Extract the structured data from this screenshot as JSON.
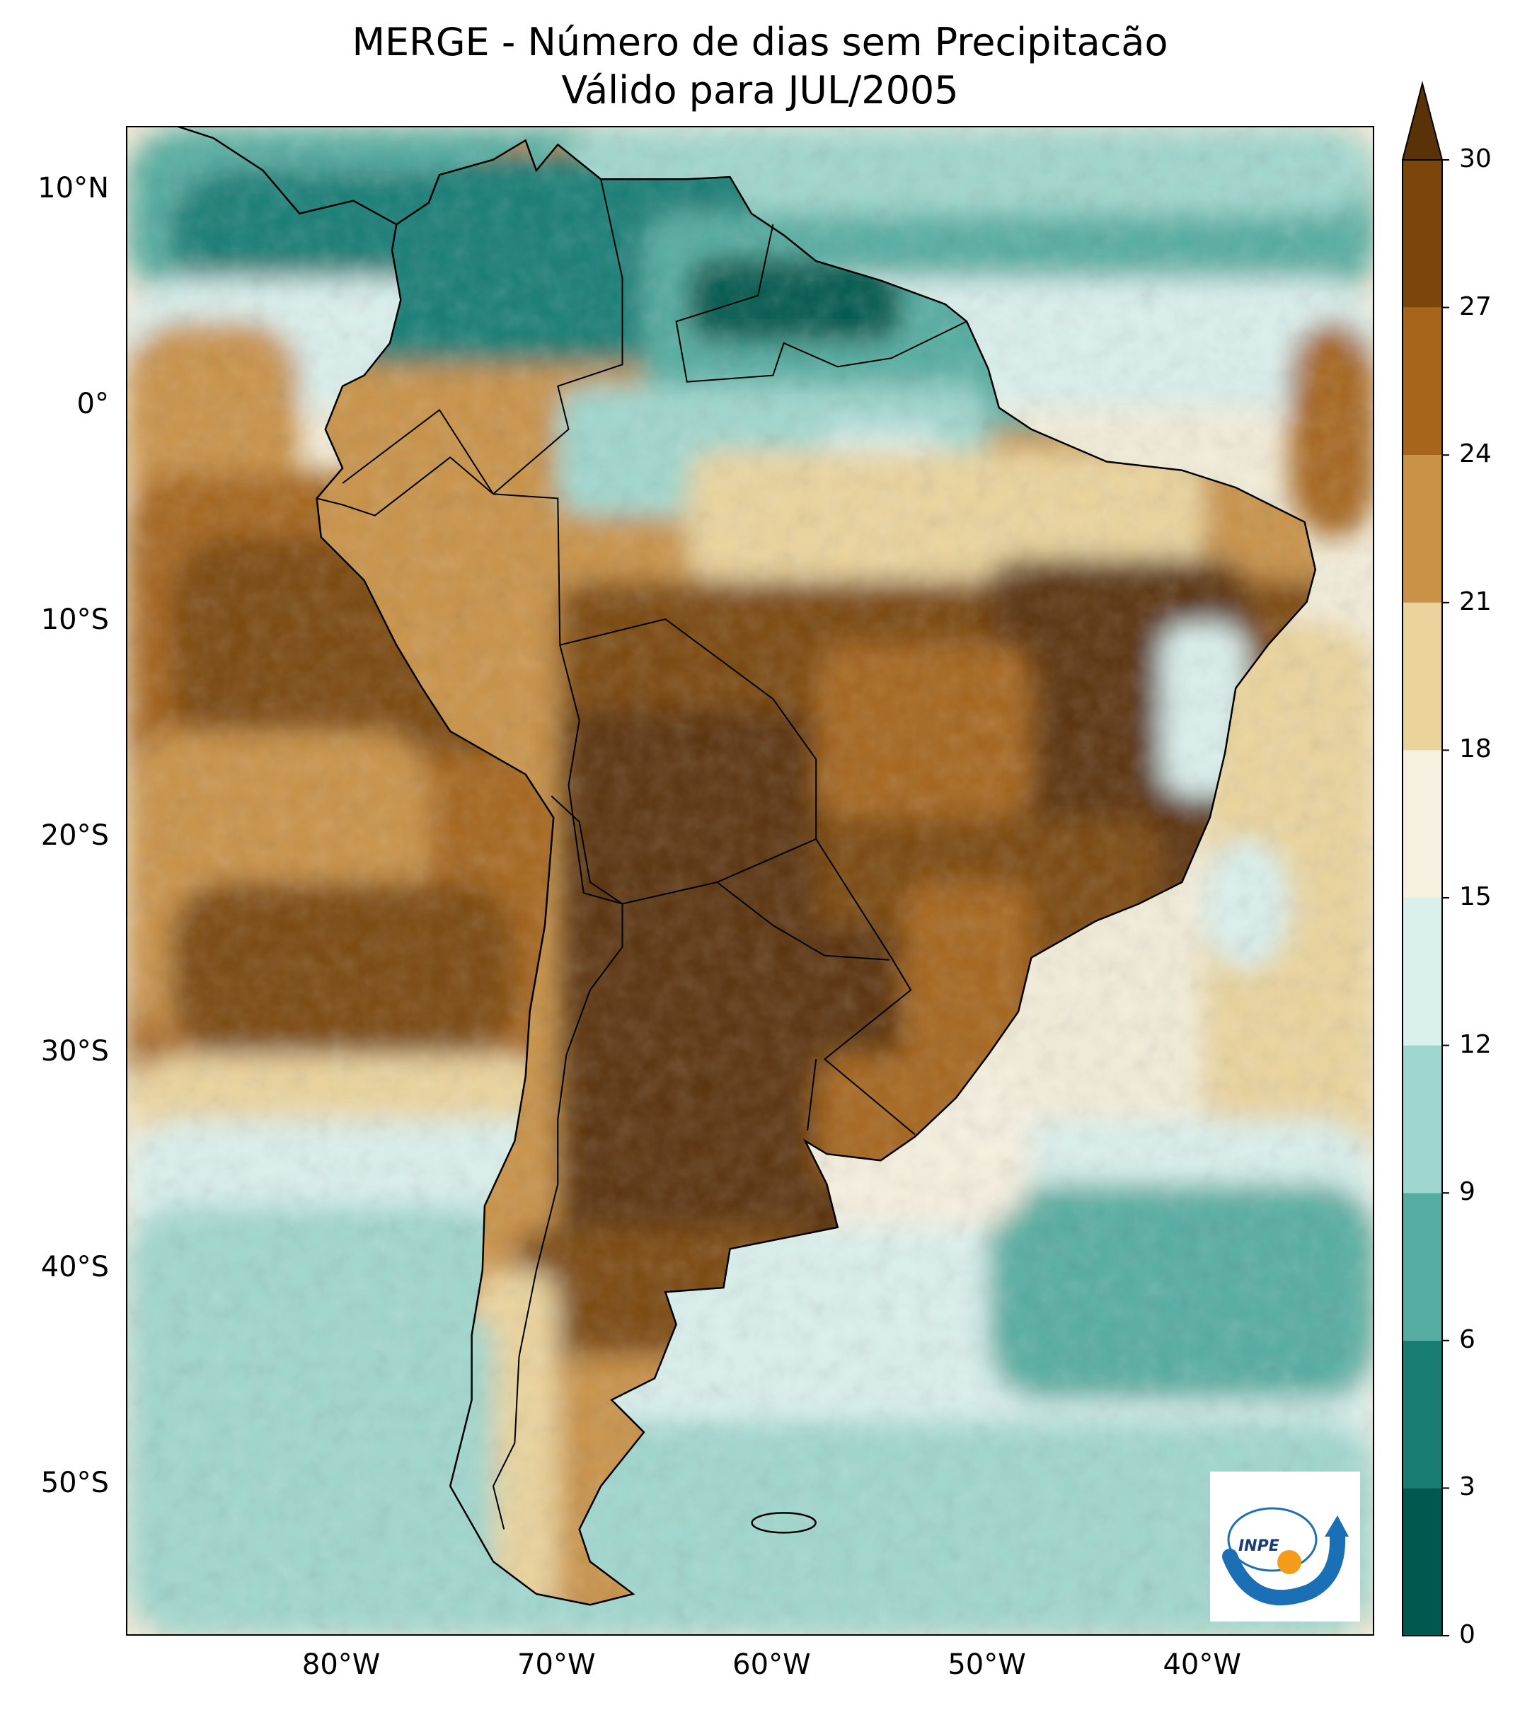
{
  "map": {
    "title_line1": "MERGE - Número de dias sem Precipitacão",
    "title_line2": "Válido para JUL/2005",
    "lat_labels": [
      "10°N",
      "0°",
      "10°S",
      "20°S",
      "30°S",
      "40°S",
      "50°S"
    ],
    "lon_labels": [
      "80°W",
      "70°W",
      "60°W",
      "50°W",
      "40°W"
    ],
    "lat_values": [
      10,
      0,
      -10,
      -20,
      -30,
      -40,
      -50
    ],
    "lon_values": [
      -80,
      -70,
      -60,
      -50,
      -40
    ],
    "extent": {
      "lon_min": -90,
      "lon_max": -32,
      "lat_min": -57,
      "lat_max": 13
    },
    "colors": {
      "land_dry_max": "#5a3208",
      "ocean_default": "#f3ecd9"
    }
  },
  "colorbar": {
    "tick_labels": [
      "0",
      "3",
      "6",
      "9",
      "12",
      "15",
      "18",
      "21",
      "24",
      "27",
      "30"
    ],
    "levels": [
      0,
      3,
      6,
      9,
      12,
      15,
      18,
      21,
      24,
      27,
      30
    ],
    "colors": [
      "#01584e",
      "#197d74",
      "#55ada1",
      "#9fd7ce",
      "#daf0ed",
      "#f6f0e0",
      "#ebd49c",
      "#c99246",
      "#a6651b",
      "#7a4609"
    ],
    "extend_color": "#5a3208"
  },
  "logo": {
    "text": "INPE"
  }
}
